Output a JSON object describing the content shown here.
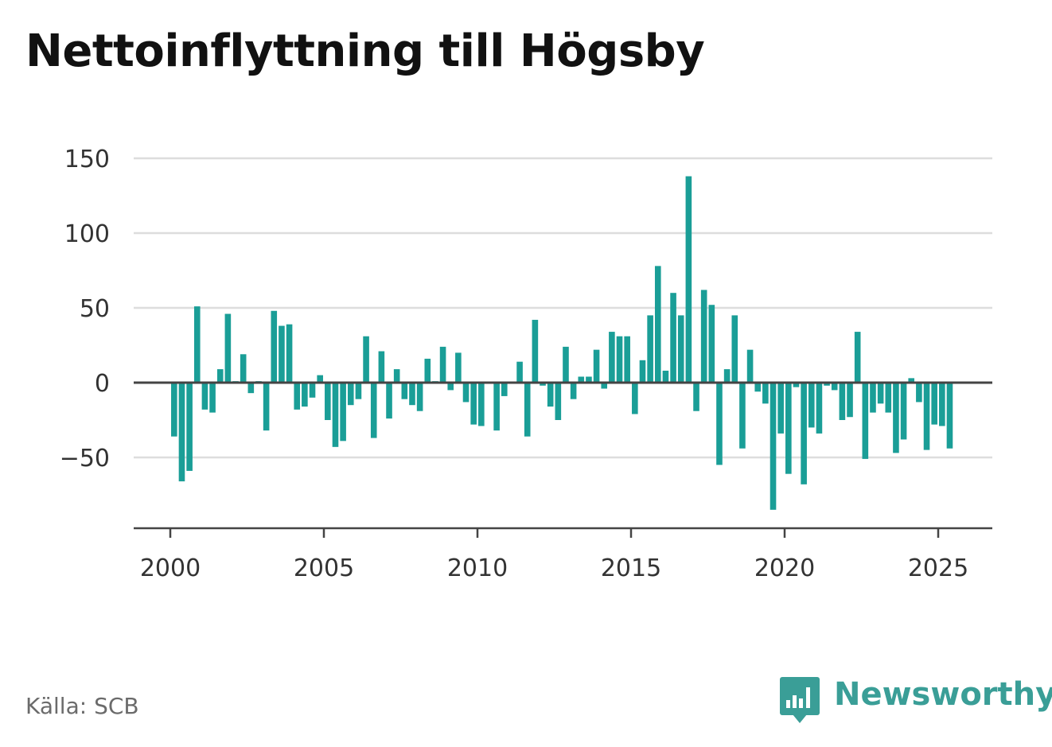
{
  "title": "Nettoinflyttning till Högsby",
  "source": "Källa: SCB",
  "brand": {
    "name": "Newsworthy",
    "icon": "newsworthy-logo-icon",
    "color": "#3a9e97"
  },
  "colors": {
    "bar": "#1a9e97",
    "zero_line": "#444444",
    "grid": "#dddddd",
    "axis": "#444444"
  },
  "chart_data": {
    "type": "bar",
    "title": "Nettoinflyttning till Högsby",
    "xlabel": "",
    "ylabel": "",
    "ylim": [
      -97,
      150
    ],
    "xlim": [
      1999.4,
      2026.75
    ],
    "yticks": [
      150,
      100,
      50,
      0,
      -50
    ],
    "ytick_labels": [
      "150",
      "100",
      "50",
      "0",
      "−50"
    ],
    "xticks": [
      2000,
      2005,
      2010,
      2015,
      2020,
      2025
    ],
    "xtick_labels": [
      "2000",
      "2005",
      "2010",
      "2015",
      "2020",
      "2025"
    ],
    "grid": true,
    "legend": "none",
    "x": [
      2000.125,
      2000.375,
      2000.625,
      2000.875,
      2001.125,
      2001.375,
      2001.625,
      2001.875,
      2002.125,
      2002.375,
      2002.625,
      2002.875,
      2003.125,
      2003.375,
      2003.625,
      2003.875,
      2004.125,
      2004.375,
      2004.625,
      2004.875,
      2005.125,
      2005.375,
      2005.625,
      2005.875,
      2006.125,
      2006.375,
      2006.625,
      2006.875,
      2007.125,
      2007.375,
      2007.625,
      2007.875,
      2008.125,
      2008.375,
      2008.625,
      2008.875,
      2009.125,
      2009.375,
      2009.625,
      2009.875,
      2010.125,
      2010.375,
      2010.625,
      2010.875,
      2011.125,
      2011.375,
      2011.625,
      2011.875,
      2012.125,
      2012.375,
      2012.625,
      2012.875,
      2013.125,
      2013.375,
      2013.625,
      2013.875,
      2014.125,
      2014.375,
      2014.625,
      2014.875,
      2015.125,
      2015.375,
      2015.625,
      2015.875,
      2016.125,
      2016.375,
      2016.625,
      2016.875,
      2017.125,
      2017.375,
      2017.625,
      2017.875,
      2018.125,
      2018.375,
      2018.625,
      2018.875,
      2019.125,
      2019.375,
      2019.625,
      2019.875,
      2020.125,
      2020.375,
      2020.625,
      2020.875,
      2021.125,
      2021.375,
      2021.625,
      2021.875,
      2022.125,
      2022.375,
      2022.625,
      2022.875,
      2023.125,
      2023.375,
      2023.625,
      2023.875,
      2024.125,
      2024.375,
      2024.625,
      2024.875,
      2025.125,
      2025.375
    ],
    "values": [
      -36,
      -66,
      -59,
      51,
      -18,
      -20,
      9,
      46,
      1,
      19,
      -7,
      1,
      -32,
      48,
      38,
      39,
      -18,
      -16,
      -10,
      5,
      -25,
      -43,
      -39,
      -15,
      -11,
      31,
      -37,
      21,
      -24,
      9,
      -11,
      -15,
      -19,
      16,
      1,
      24,
      -5,
      20,
      -13,
      -28,
      -29,
      0,
      -32,
      -9,
      0,
      14,
      -36,
      42,
      -2,
      -16,
      -25,
      24,
      -11,
      4,
      4,
      22,
      -4,
      34,
      31,
      31,
      -21,
      15,
      45,
      78,
      8,
      60,
      45,
      138,
      -19,
      62,
      52,
      -55,
      9,
      45,
      -44,
      22,
      -6,
      -14,
      -85,
      -34,
      -61,
      -3,
      -68,
      -30,
      -34,
      -2,
      -5,
      -25,
      -23,
      34,
      -51,
      -20,
      -14,
      -20,
      -47,
      -38,
      3,
      -13,
      -45,
      -28,
      -29,
      -44
    ]
  }
}
